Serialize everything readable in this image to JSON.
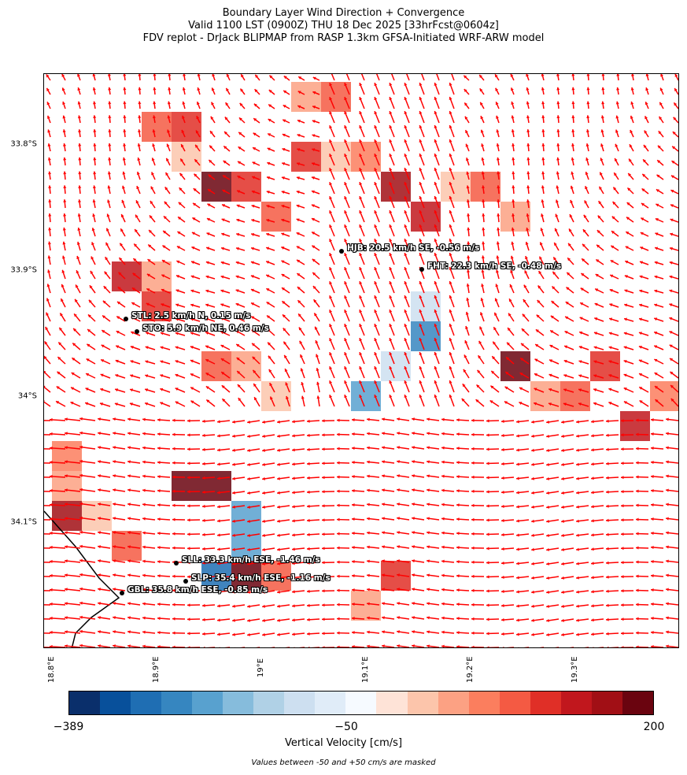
{
  "title": {
    "line1": "Boundary Layer Wind Direction + Convergence",
    "line2": "Valid 1100 LST (0900Z) THU 18 Dec 2025 [33hrFcst@0604z]",
    "line3": "FDV replot - DrJack BLIPMAP from RASP 1.3km GFSA-Initiated WRF-ARW model"
  },
  "axes": {
    "lat_ticks": [
      "33.8°S",
      "33.9°S",
      "34°S",
      "34.1°S"
    ],
    "lon_ticks": [
      "18.8°E",
      "18.9°E",
      "19°E",
      "19.1°E",
      "19.2°E",
      "19.3°E"
    ]
  },
  "stations": [
    {
      "label": "HJB: 20.5 km/h SE, -0.56 m/s"
    },
    {
      "label": "FHT: 22.3 km/h SE, -0.48 m/s"
    },
    {
      "label": "STL: 2.5 km/h N, 0.15 m/s"
    },
    {
      "label": "STO: 5.9 km/h NE, 0.46 m/s"
    },
    {
      "label": "SLL: 33.3 km/h ESE, -1.46 m/s"
    },
    {
      "label": "SLP: 35.4 km/h ESE, -1.16 m/s"
    },
    {
      "label": "GBL: 35.8 km/h ESE, -0.85 m/s"
    }
  ],
  "colorbar": {
    "label": "Vertical Velocity [cm/s]",
    "tick_labels": [
      "−389",
      "−50",
      "200"
    ],
    "colors": [
      "#0a2f6b",
      "#08509b",
      "#1f6eb3",
      "#3686c0",
      "#58a1cf",
      "#86bcdc",
      "#b0d1e6",
      "#cddff0",
      "#e0ecf8",
      "#f6faff",
      "#fee3d7",
      "#fcc5ab",
      "#fca183",
      "#fb7e5e",
      "#f45a43",
      "#e02f27",
      "#c1171d",
      "#a10f15",
      "#6a040f"
    ]
  },
  "note": "Values between -50 and +50 cm/s are masked",
  "wind_arrow_color": "#ff0000"
}
